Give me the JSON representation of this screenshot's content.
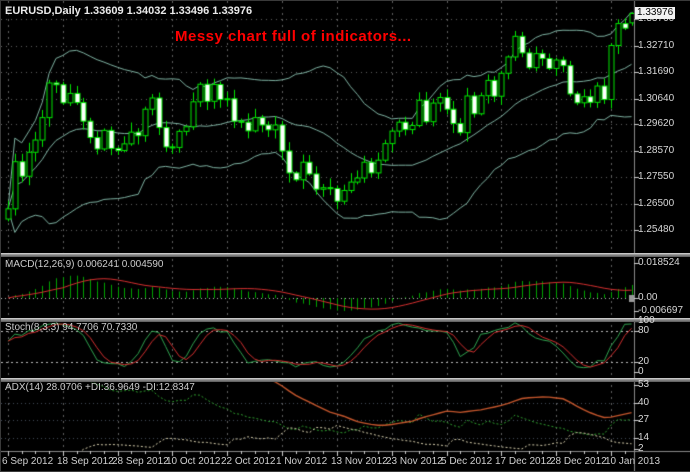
{
  "main_panel": {
    "title": "EURUSD,Daily 1.33609 1.34032 1.33496 1.33976",
    "symbol": "EURUSD",
    "timeframe": "Daily",
    "price_labels": [
      "1.33760",
      "1.32710",
      "1.31690",
      "1.30640",
      "1.29620",
      "1.28570",
      "1.27550",
      "1.26500",
      "1.25480"
    ],
    "current_price": "1.33976"
  },
  "annotation": {
    "text": "Messy chart full of indicators...",
    "color": "#ff0000"
  },
  "macd_panel": {
    "title": "MACD(12,26,9) 0.006241 0.004590",
    "axis_labels": [
      "0.018524",
      "0.00",
      "-0.006697"
    ]
  },
  "stoch_panel": {
    "title": "Stoch(8,3,3) 94.7706 70.7330",
    "axis_labels": [
      "100",
      "80",
      "20",
      "0"
    ]
  },
  "adx_panel": {
    "title": "ADX(14) 28.0706 +DI:36.9649 -DI:12.8347",
    "axis_labels": [
      "53",
      "40",
      "27",
      "14",
      "2"
    ]
  },
  "time_axis": {
    "labels": [
      "6 Sep 2012",
      "18 Sep 2012",
      "28 Sep 2012",
      "10 Oct 2012",
      "22 Oct 2012",
      "1 Nov 2012",
      "13 Nov 2012",
      "23 Nov 2012",
      "5 Dec 2012",
      "17 Dec 2012",
      "28 Dec 2012",
      "10 Jan 2013"
    ]
  },
  "colors": {
    "background": "#000000",
    "grid": "rgba(255,255,255,0.38)",
    "candle_outline": "#00e600",
    "bull_fill": "#000000",
    "bear_fill": "#ffffff",
    "bollinger": "#7fb3a3",
    "macd_histogram": "#00a300",
    "macd_signal": "#d93030",
    "stoch_main": "#2fa44f",
    "stoch_signal": "#d22f2f",
    "adx_main": "#c4562c",
    "adx_plus_di": "#2f9e2f",
    "adx_minus_di": "#d8d0ae",
    "level_lines": "#b9b9b9",
    "axis_text": "#d8d8d8",
    "separator": "#8d8d8d",
    "current_price_bg": "#f2f2f2"
  },
  "chart_data": {
    "type": "candlestick+indicators",
    "symbol": "EURUSD",
    "timeframe": "Daily",
    "title": "EURUSD Daily with Bollinger Bands, MACD(12,26,9), Stoch(8,3,3), ADX(14)",
    "x_ticks": [
      "6 Sep 2012",
      "18 Sep 2012",
      "28 Sep 2012",
      "10 Oct 2012",
      "22 Oct 2012",
      "1 Nov 2012",
      "13 Nov 2012",
      "23 Nov 2012",
      "5 Dec 2012",
      "17 Dec 2012",
      "28 Dec 2012",
      "10 Jan 2013"
    ],
    "candles_per_tick": 8,
    "price_axis": {
      "min": 1.2548,
      "max": 1.3376
    },
    "ohlc_current": {
      "open": 1.33609,
      "high": 1.34032,
      "low": 1.33496,
      "close": 1.33976
    },
    "closes": [
      1.2631,
      1.2816,
      1.2759,
      1.2853,
      1.2901,
      1.2989,
      1.3125,
      1.3118,
      1.3047,
      1.3084,
      1.3048,
      1.2975,
      1.2911,
      1.2866,
      1.2939,
      1.2868,
      1.286,
      1.2886,
      1.2932,
      1.2918,
      1.3022,
      1.3066,
      1.295,
      1.2874,
      1.2872,
      1.2935,
      1.2953,
      1.3051,
      1.312,
      1.3053,
      1.3119,
      1.306,
      1.3063,
      1.2975,
      1.2971,
      1.2937,
      1.2989,
      1.296,
      1.2941,
      1.296,
      1.2858,
      1.2772,
      1.2745,
      1.2814,
      1.2768,
      1.2708,
      1.2714,
      1.2711,
      1.2661,
      1.2703,
      1.2736,
      1.2752,
      1.2814,
      1.2772,
      1.2822,
      1.2887,
      1.2936,
      1.2971,
      1.2942,
      1.2958,
      1.3057,
      1.2973,
      1.3046,
      1.3068,
      1.3022,
      1.2966,
      1.293,
      1.3074,
      1.3004,
      1.3075,
      1.3135,
      1.3073,
      1.3163,
      1.3227,
      1.3308,
      1.3243,
      1.3185,
      1.324,
      1.3221,
      1.3182,
      1.3215,
      1.3193,
      1.3082,
      1.3047,
      1.3071,
      1.3049,
      1.3113,
      1.306,
      1.3272,
      1.3358,
      1.334,
      1.33976
    ],
    "indicators": {
      "bollinger": {
        "period": 20,
        "deviation": 2
      },
      "macd": {
        "fast": 12,
        "slow": 26,
        "signal": 9,
        "current_main": 0.006241,
        "current_signal": 0.00459
      },
      "stochastic": {
        "k": 8,
        "d": 3,
        "slowing": 3,
        "current_k": 94.7706,
        "current_d": 70.733,
        "levels": [
          80,
          20
        ]
      },
      "adx": {
        "period": 14,
        "current_adx": 28.0706,
        "current_plus_di": 36.9649,
        "current_minus_di": 12.8347
      }
    }
  }
}
